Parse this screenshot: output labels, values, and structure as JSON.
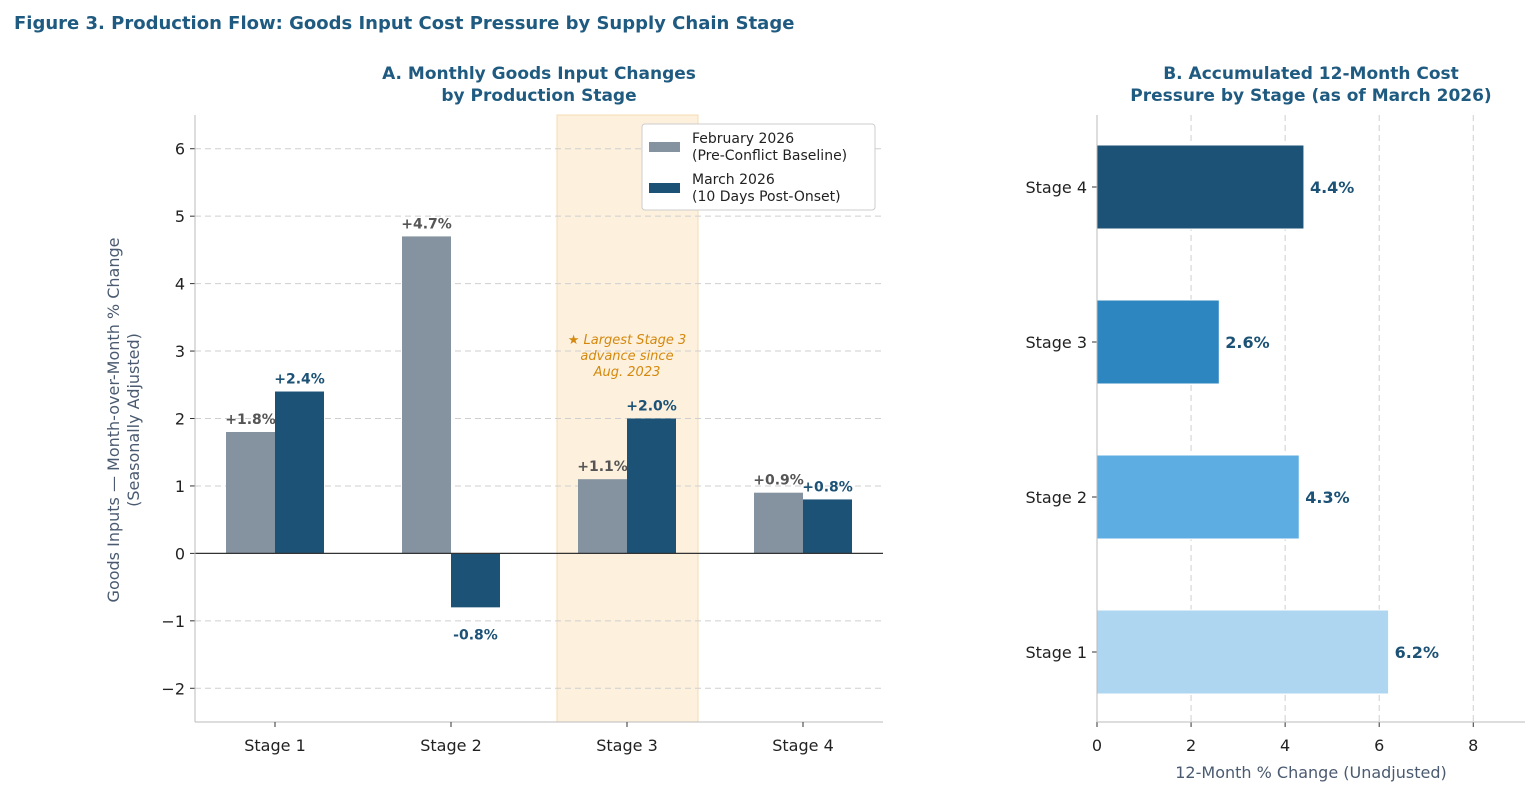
{
  "figure_title": "Figure 3. Production Flow: Goods Input Cost Pressure by Supply Chain Stage",
  "colors": {
    "title": "#1f5a80",
    "feb": "#8592a0",
    "mar": "#1c5276",
    "highlight": "#fdf0dd",
    "annotation": "#d4890e"
  },
  "chart_data": [
    {
      "type": "bar",
      "title_lines": [
        "A.  Monthly Goods Input Changes",
        "by Production Stage"
      ],
      "ylabel_lines": [
        "Goods Inputs — Month-over-Month % Change",
        "(Seasonally Adjusted)"
      ],
      "xlabel": "",
      "categories": [
        "Stage 1",
        "Stage 2",
        "Stage 3",
        "Stage 4"
      ],
      "ylim": [
        -2.5,
        6.5
      ],
      "yticks": [
        -2,
        -1,
        0,
        1,
        2,
        3,
        4,
        5,
        6
      ],
      "ytick_labels": [
        "−2",
        "−1",
        "0",
        "1",
        "2",
        "3",
        "4",
        "5",
        "6"
      ],
      "grid": "horizontal dashed",
      "legend_position": "top-right",
      "series": [
        {
          "name": "February 2026\n(Pre-Conflict Baseline)",
          "name_lines": [
            "February 2026",
            "(Pre-Conflict Baseline)"
          ],
          "values": [
            1.8,
            4.7,
            1.1,
            0.9
          ],
          "labels": [
            "+1.8%",
            "+4.7%",
            "+1.1%",
            "+0.9%"
          ],
          "color": "#8592a0",
          "label_color": "#555555"
        },
        {
          "name": "March 2026\n(10 Days Post-Onset)",
          "name_lines": [
            "March 2026",
            "(10 Days Post-Onset)"
          ],
          "values": [
            2.4,
            -0.8,
            2.0,
            0.8
          ],
          "labels": [
            "+2.4%",
            "-0.8%",
            "+2.0%",
            "+0.8%"
          ],
          "color": "#1c5276",
          "label_color": "#1c5276"
        }
      ],
      "highlight_category": "Stage 3",
      "annotation_lines": [
        "★ Largest Stage 3",
        "advance since",
        "Aug. 2023"
      ]
    },
    {
      "type": "bar",
      "orientation": "horizontal",
      "title_lines": [
        "B.  Accumulated 12-Month Cost",
        "Pressure by Stage (as of March 2026)"
      ],
      "xlabel": "12-Month % Change (Unadjusted)",
      "categories": [
        "Stage 1",
        "Stage 2",
        "Stage 3",
        "Stage 4"
      ],
      "values": [
        6.2,
        4.3,
        2.6,
        4.4
      ],
      "labels": [
        "6.2%",
        "4.3%",
        "2.6%",
        "4.4%"
      ],
      "colors": [
        "#aed6f1",
        "#5dade2",
        "#2e86c1",
        "#1c5276"
      ],
      "xlim": [
        0,
        9.1
      ],
      "xticks": [
        0,
        2,
        4,
        6,
        8
      ],
      "grid": "vertical dashed"
    }
  ]
}
